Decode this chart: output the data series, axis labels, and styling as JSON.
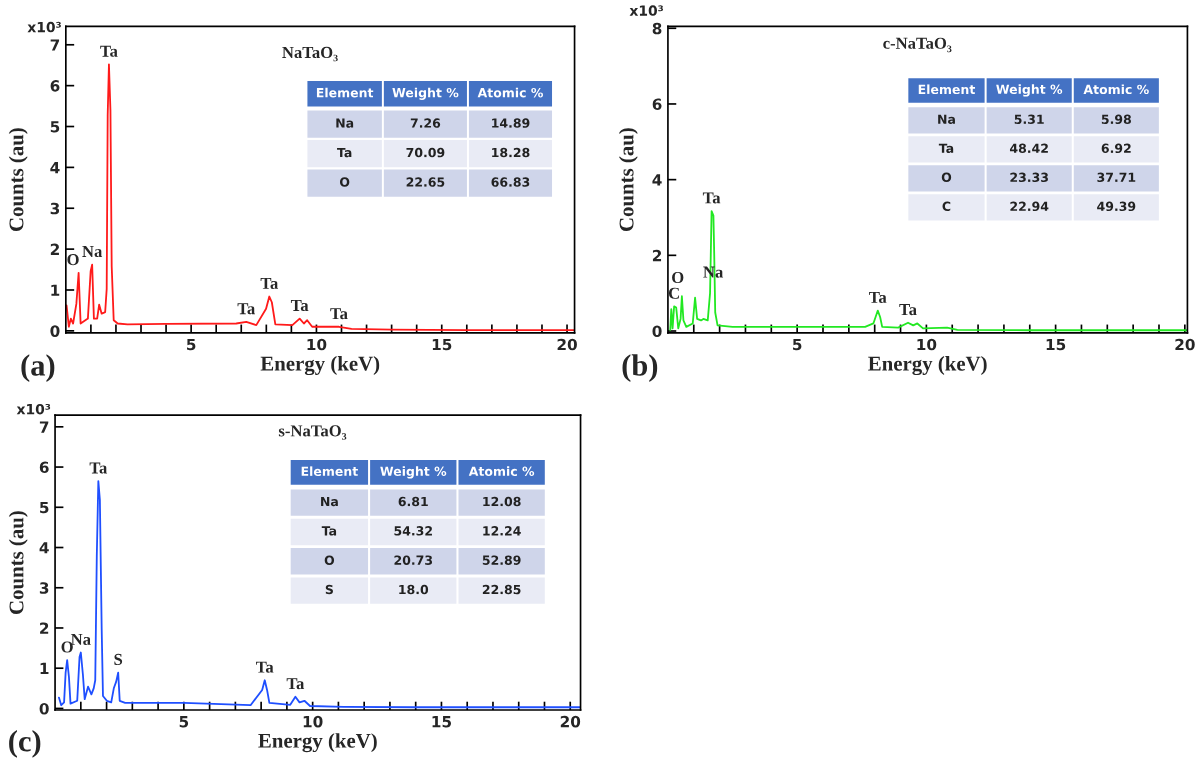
{
  "chart_data": [
    {
      "type": "line",
      "title": "NaTaO₃",
      "xlabel": "Energy (keV)",
      "ylabel": "Counts (au)",
      "xlim": [
        0,
        20.3
      ],
      "ylim": [
        -0.05,
        7.45
      ],
      "xticks": [
        {
          "value": 1,
          "label": null
        },
        {
          "value": 2,
          "label": null
        },
        {
          "value": 3,
          "label": null
        },
        {
          "value": 4,
          "label": null
        },
        5,
        {
          "value": 6,
          "label": null
        },
        {
          "value": 7,
          "label": null
        },
        {
          "value": 8,
          "label": null
        },
        {
          "value": 9,
          "label": null
        },
        10,
        {
          "value": 11,
          "label": null
        },
        {
          "value": 12,
          "label": null
        },
        {
          "value": 13,
          "label": null
        },
        {
          "value": 14,
          "label": null
        },
        15,
        {
          "value": 16,
          "label": null
        },
        {
          "value": 17,
          "label": null
        },
        {
          "value": 18,
          "label": null
        },
        {
          "value": 19,
          "label": null
        },
        20
      ],
      "yticks": [
        0,
        1,
        2,
        3,
        4,
        5,
        6,
        7
      ],
      "series": [
        {
          "color": "#ff1a1a",
          "x": [
            0.03,
            0.12,
            0.2,
            0.29,
            0.42,
            0.51,
            0.59,
            0.88,
            0.99,
            1.05,
            1.12,
            1.25,
            1.33,
            1.43,
            1.57,
            1.63,
            1.67,
            1.72,
            1.78,
            1.83,
            1.91,
            2.07,
            2.46,
            4.0,
            6.8,
            7.2,
            7.6,
            7.99,
            8.12,
            8.22,
            8.36,
            9.04,
            9.33,
            9.5,
            9.63,
            9.83,
            10.2,
            10.9,
            11.4,
            13.0,
            16.0,
            20.3
          ],
          "values": [
            0.62,
            0.1,
            0.3,
            0.18,
            0.66,
            1.42,
            0.18,
            0.3,
            1.46,
            1.62,
            0.3,
            0.3,
            0.64,
            0.42,
            0.46,
            1.02,
            5.27,
            6.52,
            5.39,
            1.58,
            0.26,
            0.18,
            0.16,
            0.17,
            0.18,
            0.22,
            0.14,
            0.54,
            0.84,
            0.7,
            0.16,
            0.14,
            0.3,
            0.18,
            0.26,
            0.1,
            0.1,
            0.1,
            0.05,
            0.03,
            0.02,
            0.02
          ]
        }
      ],
      "annotations": [
        "(a)",
        "x10³",
        {
          "text": "O",
          "x": 0.51,
          "y": 1.42
        },
        {
          "text": "Na",
          "x": 1.05,
          "y": 1.62
        },
        {
          "text": "Ta",
          "x": 1.72,
          "y": 6.52
        },
        {
          "text": "Ta",
          "x": 7.2,
          "y": 0.22
        },
        {
          "text": "Ta",
          "x": 8.12,
          "y": 0.84
        },
        {
          "text": "Ta",
          "x": 9.33,
          "y": 0.3
        },
        {
          "text": "Ta",
          "x": 10.9,
          "y": 0.1
        }
      ]
    },
    {
      "type": "other",
      "annotations": [
        "Element",
        "Weight %",
        "Atomic %",
        "Na",
        "7.26",
        "14.89",
        "Ta",
        "70.09",
        "18.28",
        "O",
        "22.65",
        "66.83"
      ]
    },
    {
      "type": "line",
      "title": "c-NaTaO₃",
      "xlabel": "Energy (keV)",
      "ylabel": "Counts (au)",
      "xlim": [
        0,
        20.1
      ],
      "ylim": [
        -0.05,
        8.05
      ],
      "xticks": [
        {
          "value": 1,
          "label": null
        },
        {
          "value": 2,
          "label": null
        },
        {
          "value": 3,
          "label": null
        },
        {
          "value": 4,
          "label": null
        },
        5,
        {
          "value": 6,
          "label": null
        },
        {
          "value": 7,
          "label": null
        },
        {
          "value": 8,
          "label": null
        },
        {
          "value": 9,
          "label": null
        },
        10,
        {
          "value": 11,
          "label": null
        },
        {
          "value": 12,
          "label": null
        },
        {
          "value": 13,
          "label": null
        },
        {
          "value": 14,
          "label": null
        },
        15,
        {
          "value": 16,
          "label": null
        },
        {
          "value": 17,
          "label": null
        },
        {
          "value": 18,
          "label": null
        },
        {
          "value": 19,
          "label": null
        },
        20
      ],
      "yticks": [
        0,
        2,
        4,
        6,
        8
      ],
      "series": [
        {
          "color": "#22e822",
          "x": [
            0.09,
            0.13,
            0.18,
            0.24,
            0.32,
            0.4,
            0.49,
            0.54,
            0.6,
            0.71,
            0.96,
            1.05,
            1.13,
            1.28,
            1.37,
            1.54,
            1.63,
            1.69,
            1.76,
            1.79,
            1.83,
            1.92,
            2.5,
            5.0,
            7.63,
            7.95,
            8.12,
            8.21,
            8.29,
            8.91,
            9.29,
            9.49,
            9.65,
            9.87,
            10.8,
            11.2,
            14.0,
            20.1
          ],
          "values": [
            0.03,
            0.58,
            0.07,
            0.65,
            0.62,
            0.07,
            0.32,
            0.92,
            0.28,
            0.11,
            0.2,
            0.88,
            0.32,
            0.28,
            0.32,
            0.28,
            1.0,
            3.17,
            3.05,
            2.07,
            0.49,
            0.15,
            0.11,
            0.11,
            0.11,
            0.2,
            0.54,
            0.37,
            0.11,
            0.09,
            0.22,
            0.15,
            0.2,
            0.07,
            0.09,
            0.03,
            0.02,
            0.02
          ]
        }
      ],
      "annotations": [
        "(b)",
        "x10³",
        {
          "text": "C",
          "x": 0.24,
          "y": 0.65
        },
        {
          "text": "O",
          "x": 0.54,
          "y": 0.92
        },
        {
          "text": "Na",
          "x": 1.05,
          "y": 0.88
        },
        {
          "text": "Ta",
          "x": 1.69,
          "y": 3.17
        },
        {
          "text": "Ta",
          "x": 8.12,
          "y": 0.54
        },
        {
          "text": "Ta",
          "x": 9.29,
          "y": 0.22
        }
      ]
    },
    {
      "type": "other",
      "annotations": [
        "Element",
        "Weight %",
        "Atomic %",
        "Na",
        "5.31",
        "5.98",
        "Ta",
        "48.42",
        "6.92",
        "O",
        "23.33",
        "37.71",
        "C",
        "22.94",
        "49.39"
      ]
    },
    {
      "type": "line",
      "title": "s-NaTaO₃",
      "xlabel": "Energy (keV)",
      "ylabel": "Counts (au)",
      "xlim": [
        0,
        20.4
      ],
      "ylim": [
        -0.04,
        7.29
      ],
      "xticks": [
        {
          "value": 1,
          "label": null
        },
        {
          "value": 2,
          "label": null
        },
        {
          "value": 3,
          "label": null
        },
        {
          "value": 4,
          "label": null
        },
        5,
        {
          "value": 6,
          "label": null
        },
        {
          "value": 7,
          "label": null
        },
        {
          "value": 8,
          "label": null
        },
        {
          "value": 9,
          "label": null
        },
        10,
        {
          "value": 11,
          "label": null
        },
        {
          "value": 12,
          "label": null
        },
        {
          "value": 13,
          "label": null
        },
        {
          "value": 14,
          "label": null
        },
        15,
        {
          "value": 16,
          "label": null
        },
        {
          "value": 17,
          "label": null
        },
        {
          "value": 18,
          "label": null
        },
        {
          "value": 19,
          "label": null
        },
        20
      ],
      "yticks": [
        0,
        1,
        2,
        3,
        4,
        5,
        6,
        7
      ],
      "series": [
        {
          "color": "#1f4fff",
          "x": [
            0.15,
            0.24,
            0.35,
            0.41,
            0.47,
            0.54,
            0.6,
            0.86,
            0.95,
            1.0,
            1.08,
            1.15,
            1.28,
            1.41,
            1.5,
            1.56,
            1.62,
            1.68,
            1.74,
            1.81,
            1.86,
            2.01,
            2.18,
            2.28,
            2.37,
            2.45,
            2.51,
            2.72,
            5.0,
            7.59,
            8.04,
            8.14,
            8.23,
            8.32,
            9.13,
            9.33,
            9.49,
            9.68,
            9.9,
            11.2,
            14.0,
            20.4
          ],
          "values": [
            0.27,
            0.08,
            0.15,
            0.89,
            1.2,
            0.77,
            0.12,
            0.19,
            1.28,
            1.39,
            0.85,
            0.23,
            0.54,
            0.35,
            0.5,
            0.7,
            3.79,
            5.65,
            5.18,
            1.97,
            0.31,
            0.19,
            0.15,
            0.5,
            0.66,
            0.89,
            0.19,
            0.14,
            0.14,
            0.08,
            0.46,
            0.7,
            0.46,
            0.14,
            0.09,
            0.29,
            0.15,
            0.19,
            0.06,
            0.04,
            0.03,
            0.03
          ]
        }
      ],
      "annotations": [
        "(c)",
        "x10³",
        {
          "text": "O",
          "x": 0.47,
          "y": 1.2
        },
        {
          "text": "Na",
          "x": 1.0,
          "y": 1.39
        },
        {
          "text": "Ta",
          "x": 1.68,
          "y": 5.65
        },
        {
          "text": "S",
          "x": 2.45,
          "y": 0.89
        },
        {
          "text": "Ta",
          "x": 8.14,
          "y": 0.7
        },
        {
          "text": "Ta",
          "x": 9.33,
          "y": 0.29
        }
      ]
    },
    {
      "type": "other",
      "annotations": [
        "Element",
        "Weight %",
        "Atomic %",
        "Na",
        "6.81",
        "12.08",
        "Ta",
        "54.32",
        "12.24",
        "O",
        "20.73",
        "52.89",
        "S",
        "18.0",
        "22.85"
      ]
    }
  ]
}
